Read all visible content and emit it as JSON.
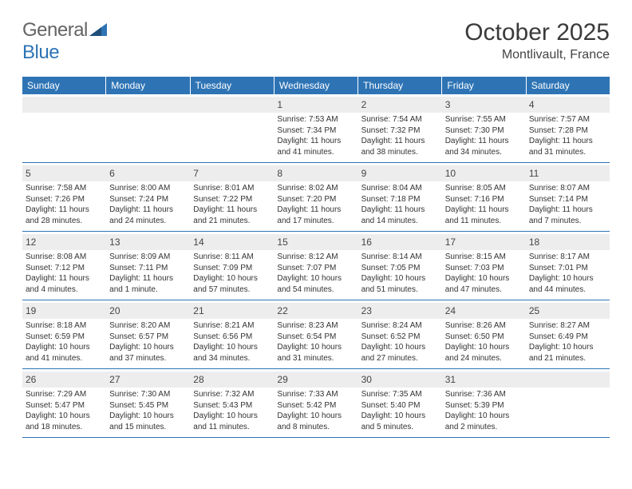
{
  "logo": {
    "textGray": "General",
    "textBlue": "Blue"
  },
  "title": "October 2025",
  "location": "Montlivault, France",
  "daysOfWeek": [
    "Sunday",
    "Monday",
    "Tuesday",
    "Wednesday",
    "Thursday",
    "Friday",
    "Saturday"
  ],
  "colors": {
    "brand": "#2e74b5",
    "headerText": "#ffffff",
    "dayNumBg": "#ededed"
  },
  "weeks": [
    [
      {
        "n": "",
        "sunrise": "",
        "sunset": "",
        "daylight1": "",
        "daylight2": ""
      },
      {
        "n": "",
        "sunrise": "",
        "sunset": "",
        "daylight1": "",
        "daylight2": ""
      },
      {
        "n": "",
        "sunrise": "",
        "sunset": "",
        "daylight1": "",
        "daylight2": ""
      },
      {
        "n": "1",
        "sunrise": "Sunrise: 7:53 AM",
        "sunset": "Sunset: 7:34 PM",
        "daylight1": "Daylight: 11 hours",
        "daylight2": "and 41 minutes."
      },
      {
        "n": "2",
        "sunrise": "Sunrise: 7:54 AM",
        "sunset": "Sunset: 7:32 PM",
        "daylight1": "Daylight: 11 hours",
        "daylight2": "and 38 minutes."
      },
      {
        "n": "3",
        "sunrise": "Sunrise: 7:55 AM",
        "sunset": "Sunset: 7:30 PM",
        "daylight1": "Daylight: 11 hours",
        "daylight2": "and 34 minutes."
      },
      {
        "n": "4",
        "sunrise": "Sunrise: 7:57 AM",
        "sunset": "Sunset: 7:28 PM",
        "daylight1": "Daylight: 11 hours",
        "daylight2": "and 31 minutes."
      }
    ],
    [
      {
        "n": "5",
        "sunrise": "Sunrise: 7:58 AM",
        "sunset": "Sunset: 7:26 PM",
        "daylight1": "Daylight: 11 hours",
        "daylight2": "and 28 minutes."
      },
      {
        "n": "6",
        "sunrise": "Sunrise: 8:00 AM",
        "sunset": "Sunset: 7:24 PM",
        "daylight1": "Daylight: 11 hours",
        "daylight2": "and 24 minutes."
      },
      {
        "n": "7",
        "sunrise": "Sunrise: 8:01 AM",
        "sunset": "Sunset: 7:22 PM",
        "daylight1": "Daylight: 11 hours",
        "daylight2": "and 21 minutes."
      },
      {
        "n": "8",
        "sunrise": "Sunrise: 8:02 AM",
        "sunset": "Sunset: 7:20 PM",
        "daylight1": "Daylight: 11 hours",
        "daylight2": "and 17 minutes."
      },
      {
        "n": "9",
        "sunrise": "Sunrise: 8:04 AM",
        "sunset": "Sunset: 7:18 PM",
        "daylight1": "Daylight: 11 hours",
        "daylight2": "and 14 minutes."
      },
      {
        "n": "10",
        "sunrise": "Sunrise: 8:05 AM",
        "sunset": "Sunset: 7:16 PM",
        "daylight1": "Daylight: 11 hours",
        "daylight2": "and 11 minutes."
      },
      {
        "n": "11",
        "sunrise": "Sunrise: 8:07 AM",
        "sunset": "Sunset: 7:14 PM",
        "daylight1": "Daylight: 11 hours",
        "daylight2": "and 7 minutes."
      }
    ],
    [
      {
        "n": "12",
        "sunrise": "Sunrise: 8:08 AM",
        "sunset": "Sunset: 7:12 PM",
        "daylight1": "Daylight: 11 hours",
        "daylight2": "and 4 minutes."
      },
      {
        "n": "13",
        "sunrise": "Sunrise: 8:09 AM",
        "sunset": "Sunset: 7:11 PM",
        "daylight1": "Daylight: 11 hours",
        "daylight2": "and 1 minute."
      },
      {
        "n": "14",
        "sunrise": "Sunrise: 8:11 AM",
        "sunset": "Sunset: 7:09 PM",
        "daylight1": "Daylight: 10 hours",
        "daylight2": "and 57 minutes."
      },
      {
        "n": "15",
        "sunrise": "Sunrise: 8:12 AM",
        "sunset": "Sunset: 7:07 PM",
        "daylight1": "Daylight: 10 hours",
        "daylight2": "and 54 minutes."
      },
      {
        "n": "16",
        "sunrise": "Sunrise: 8:14 AM",
        "sunset": "Sunset: 7:05 PM",
        "daylight1": "Daylight: 10 hours",
        "daylight2": "and 51 minutes."
      },
      {
        "n": "17",
        "sunrise": "Sunrise: 8:15 AM",
        "sunset": "Sunset: 7:03 PM",
        "daylight1": "Daylight: 10 hours",
        "daylight2": "and 47 minutes."
      },
      {
        "n": "18",
        "sunrise": "Sunrise: 8:17 AM",
        "sunset": "Sunset: 7:01 PM",
        "daylight1": "Daylight: 10 hours",
        "daylight2": "and 44 minutes."
      }
    ],
    [
      {
        "n": "19",
        "sunrise": "Sunrise: 8:18 AM",
        "sunset": "Sunset: 6:59 PM",
        "daylight1": "Daylight: 10 hours",
        "daylight2": "and 41 minutes."
      },
      {
        "n": "20",
        "sunrise": "Sunrise: 8:20 AM",
        "sunset": "Sunset: 6:57 PM",
        "daylight1": "Daylight: 10 hours",
        "daylight2": "and 37 minutes."
      },
      {
        "n": "21",
        "sunrise": "Sunrise: 8:21 AM",
        "sunset": "Sunset: 6:56 PM",
        "daylight1": "Daylight: 10 hours",
        "daylight2": "and 34 minutes."
      },
      {
        "n": "22",
        "sunrise": "Sunrise: 8:23 AM",
        "sunset": "Sunset: 6:54 PM",
        "daylight1": "Daylight: 10 hours",
        "daylight2": "and 31 minutes."
      },
      {
        "n": "23",
        "sunrise": "Sunrise: 8:24 AM",
        "sunset": "Sunset: 6:52 PM",
        "daylight1": "Daylight: 10 hours",
        "daylight2": "and 27 minutes."
      },
      {
        "n": "24",
        "sunrise": "Sunrise: 8:26 AM",
        "sunset": "Sunset: 6:50 PM",
        "daylight1": "Daylight: 10 hours",
        "daylight2": "and 24 minutes."
      },
      {
        "n": "25",
        "sunrise": "Sunrise: 8:27 AM",
        "sunset": "Sunset: 6:49 PM",
        "daylight1": "Daylight: 10 hours",
        "daylight2": "and 21 minutes."
      }
    ],
    [
      {
        "n": "26",
        "sunrise": "Sunrise: 7:29 AM",
        "sunset": "Sunset: 5:47 PM",
        "daylight1": "Daylight: 10 hours",
        "daylight2": "and 18 minutes."
      },
      {
        "n": "27",
        "sunrise": "Sunrise: 7:30 AM",
        "sunset": "Sunset: 5:45 PM",
        "daylight1": "Daylight: 10 hours",
        "daylight2": "and 15 minutes."
      },
      {
        "n": "28",
        "sunrise": "Sunrise: 7:32 AM",
        "sunset": "Sunset: 5:43 PM",
        "daylight1": "Daylight: 10 hours",
        "daylight2": "and 11 minutes."
      },
      {
        "n": "29",
        "sunrise": "Sunrise: 7:33 AM",
        "sunset": "Sunset: 5:42 PM",
        "daylight1": "Daylight: 10 hours",
        "daylight2": "and 8 minutes."
      },
      {
        "n": "30",
        "sunrise": "Sunrise: 7:35 AM",
        "sunset": "Sunset: 5:40 PM",
        "daylight1": "Daylight: 10 hours",
        "daylight2": "and 5 minutes."
      },
      {
        "n": "31",
        "sunrise": "Sunrise: 7:36 AM",
        "sunset": "Sunset: 5:39 PM",
        "daylight1": "Daylight: 10 hours",
        "daylight2": "and 2 minutes."
      },
      {
        "n": "",
        "sunrise": "",
        "sunset": "",
        "daylight1": "",
        "daylight2": ""
      }
    ]
  ]
}
